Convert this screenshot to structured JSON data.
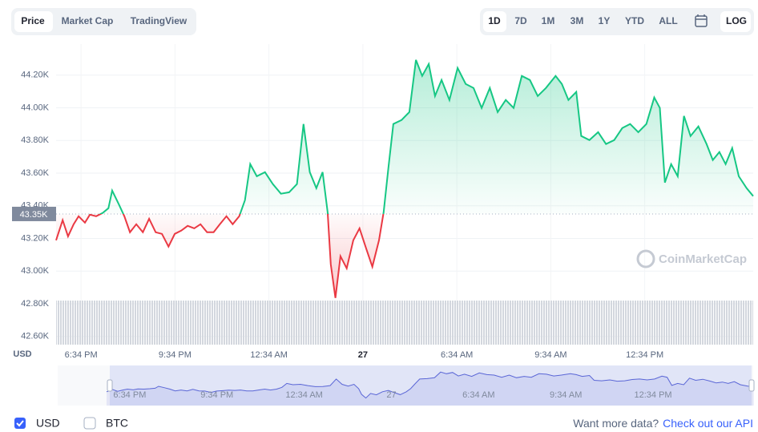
{
  "chart_tabs": [
    "Price",
    "Market Cap",
    "TradingView"
  ],
  "range_tabs": [
    "1D",
    "7D",
    "1M",
    "3M",
    "1Y",
    "YTD",
    "ALL"
  ],
  "log_button": "LOG",
  "watermark": "CoinMarketCap",
  "axis_unit": "USD",
  "currencies": [
    "USD",
    "BTC"
  ],
  "footer_text": "Want more data?",
  "footer_link": "Check out our API",
  "chart_data": {
    "type": "line",
    "color_up": "#16c784",
    "color_down": "#ea3943",
    "navigator_color": "#5a66d6",
    "grid": true,
    "baseline": {
      "value": 43350,
      "label": "43.35K"
    },
    "xlim": [
      17.77,
      40.03
    ],
    "xticks": [
      {
        "value": 18.567,
        "label": "6:34 PM"
      },
      {
        "value": 21.567,
        "label": "9:34 PM"
      },
      {
        "value": 24.567,
        "label": "12:34 AM"
      },
      {
        "value": 27.567,
        "label": "27"
      },
      {
        "value": 30.567,
        "label": "6:34 AM"
      },
      {
        "value": 33.567,
        "label": "9:34 AM"
      },
      {
        "value": 36.567,
        "label": "12:34 PM"
      }
    ],
    "ylim": [
      42550,
      44390
    ],
    "yticks": [
      {
        "value": 42600,
        "label": "42.60K"
      },
      {
        "value": 42800,
        "label": "42.80K"
      },
      {
        "value": 43000,
        "label": "43.00K"
      },
      {
        "value": 43200,
        "label": "43.20K"
      },
      {
        "value": 43400,
        "label": "43.40K"
      },
      {
        "value": 43600,
        "label": "43.60K"
      },
      {
        "value": 43800,
        "label": "43.80K"
      },
      {
        "value": 44000,
        "label": "44.00K"
      },
      {
        "value": 44200,
        "label": "44.20K"
      }
    ],
    "x": [
      17.77,
      17.98,
      18.15,
      18.33,
      18.49,
      18.69,
      18.85,
      19.05,
      19.26,
      19.44,
      19.56,
      19.77,
      19.95,
      20.13,
      20.33,
      20.54,
      20.74,
      20.95,
      21.15,
      21.36,
      21.56,
      21.77,
      21.97,
      22.18,
      22.38,
      22.59,
      22.8,
      23.0,
      23.21,
      23.41,
      23.62,
      23.8,
      23.97,
      24.18,
      24.44,
      24.69,
      24.95,
      25.21,
      25.46,
      25.67,
      25.87,
      26.08,
      26.28,
      26.44,
      26.54,
      26.69,
      26.85,
      27.05,
      27.26,
      27.46,
      27.67,
      27.87,
      28.08,
      28.23,
      28.38,
      28.54,
      28.8,
      29.05,
      29.26,
      29.46,
      29.67,
      29.87,
      30.08,
      30.33,
      30.59,
      30.85,
      31.1,
      31.36,
      31.62,
      31.87,
      32.13,
      32.38,
      32.64,
      32.9,
      33.15,
      33.41,
      33.72,
      33.92,
      34.13,
      34.38,
      34.54,
      34.8,
      35.08,
      35.33,
      35.59,
      35.85,
      36.1,
      36.36,
      36.62,
      36.87,
      37.05,
      37.21,
      37.41,
      37.62,
      37.82,
      38.03,
      38.28,
      38.54,
      38.74,
      38.95,
      39.15,
      39.36,
      39.57,
      39.82,
      40.03
    ],
    "values": [
      43189,
      43312,
      43213,
      43287,
      43336,
      43297,
      43346,
      43336,
      43356,
      43385,
      43493,
      43410,
      43336,
      43238,
      43287,
      43238,
      43321,
      43238,
      43228,
      43150,
      43228,
      43248,
      43277,
      43262,
      43287,
      43238,
      43238,
      43287,
      43336,
      43287,
      43336,
      43434,
      43655,
      43581,
      43606,
      43533,
      43474,
      43483,
      43533,
      43901,
      43606,
      43508,
      43606,
      43361,
      43042,
      42836,
      43091,
      43017,
      43189,
      43262,
      43140,
      43027,
      43189,
      43361,
      43631,
      43901,
      43925,
      43974,
      44293,
      44195,
      44268,
      44072,
      44170,
      44048,
      44244,
      44146,
      44121,
      43999,
      44121,
      43974,
      44048,
      43999,
      44195,
      44170,
      44072,
      44121,
      44195,
      44146,
      44048,
      44097,
      43827,
      43802,
      43851,
      43778,
      43802,
      43876,
      43901,
      43851,
      43901,
      44063,
      43999,
      43542,
      43655,
      43581,
      43950,
      43827,
      43886,
      43778,
      43680,
      43729,
      43655,
      43753,
      43581,
      43508,
      43459
    ]
  }
}
